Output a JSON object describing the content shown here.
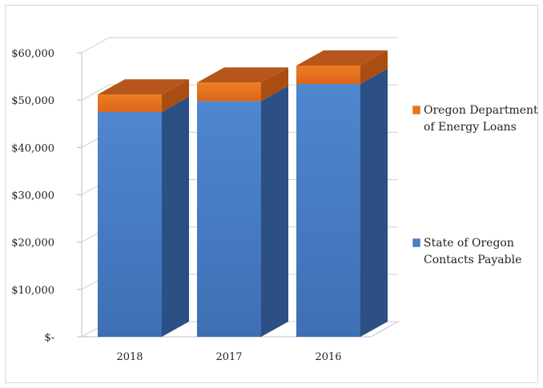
{
  "chart_data": {
    "type": "bar",
    "stacked": true,
    "three_d": true,
    "title": "",
    "xlabel": "",
    "ylabel": "",
    "categories": [
      "2018",
      "2017",
      "2016"
    ],
    "series": [
      {
        "name": "State of Oregon Contacts Payable",
        "legend_lines": [
          "State of Oregon",
          "Contacts Payable"
        ],
        "color": "#4a7ec4",
        "values": [
          47500,
          49800,
          53400
        ]
      },
      {
        "name": "Oregon Department of Energy Loans",
        "legend_lines": [
          "Oregon Department",
          "of Energy Loans"
        ],
        "color": "#e8731f",
        "values": [
          3700,
          3900,
          3900
        ]
      }
    ],
    "ylim": [
      0,
      60000
    ],
    "yticks": [
      0,
      10000,
      20000,
      30000,
      40000,
      50000,
      60000
    ],
    "ytick_labels": [
      "$-",
      "$10,000",
      "$20,000",
      "$30,000",
      "$40,000",
      "$50,000",
      "$60,000"
    ],
    "grid": true,
    "legend_position": "right"
  }
}
